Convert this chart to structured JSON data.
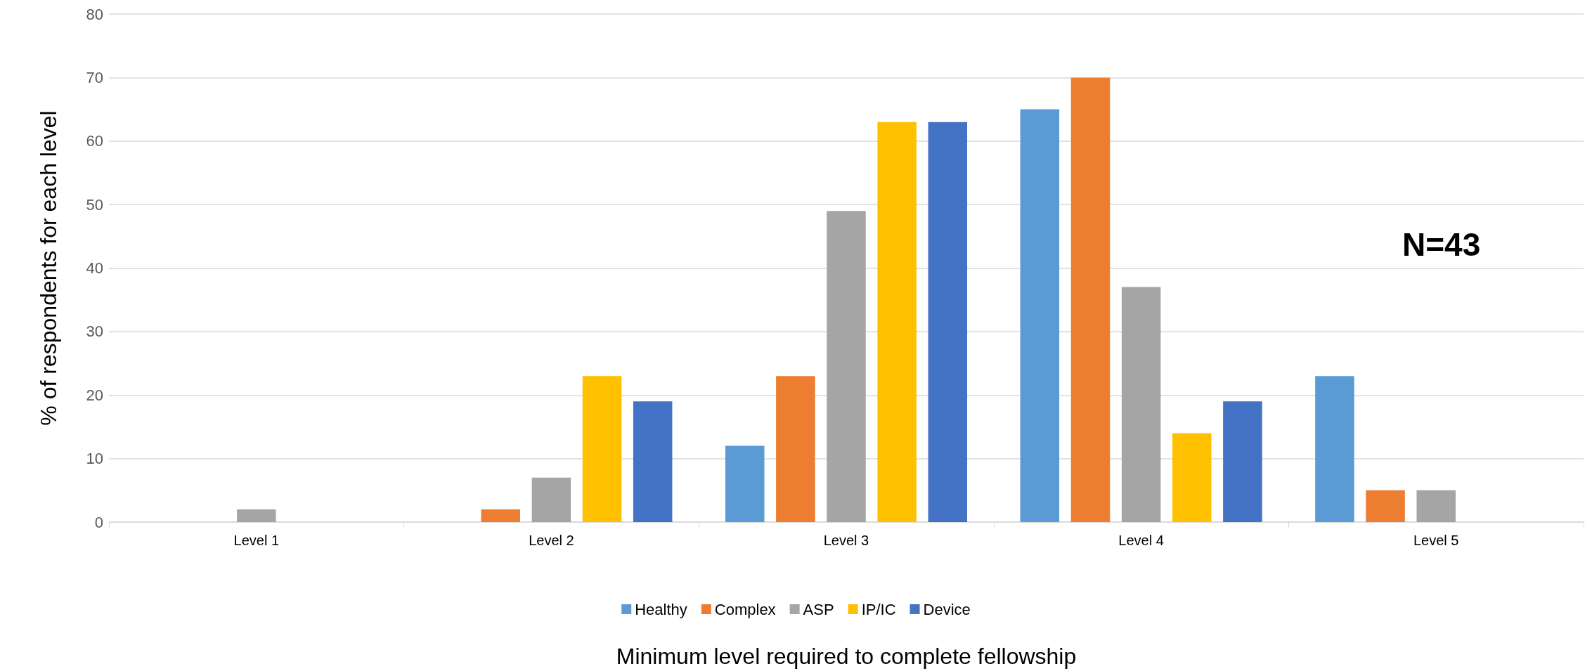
{
  "chart_data": {
    "type": "bar",
    "xlabel": "Minimum level required to complete fellowship",
    "ylabel": "% of respondents for each level",
    "categories": [
      "Level 1",
      "Level 2",
      "Level 3",
      "Level 4",
      "Level 5"
    ],
    "series": [
      {
        "name": "Healthy",
        "color": "#5b9bd5",
        "values": [
          0,
          0,
          12,
          65,
          23
        ]
      },
      {
        "name": "Complex",
        "color": "#ed7d31",
        "values": [
          0,
          2,
          23,
          70,
          5
        ]
      },
      {
        "name": "ASP",
        "color": "#a5a5a5",
        "values": [
          2,
          7,
          49,
          37,
          5
        ]
      },
      {
        "name": "IP/IC",
        "color": "#ffc000",
        "values": [
          0,
          23,
          63,
          14,
          0
        ]
      },
      {
        "name": "Device",
        "color": "#4472c4",
        "values": [
          0,
          19,
          63,
          19,
          0
        ]
      }
    ],
    "ylim": [
      0,
      80
    ],
    "yticks": [
      0,
      10,
      20,
      30,
      40,
      50,
      60,
      70,
      80
    ],
    "grid": "y",
    "legend": "bottom",
    "annotations": [
      "N=43"
    ]
  }
}
